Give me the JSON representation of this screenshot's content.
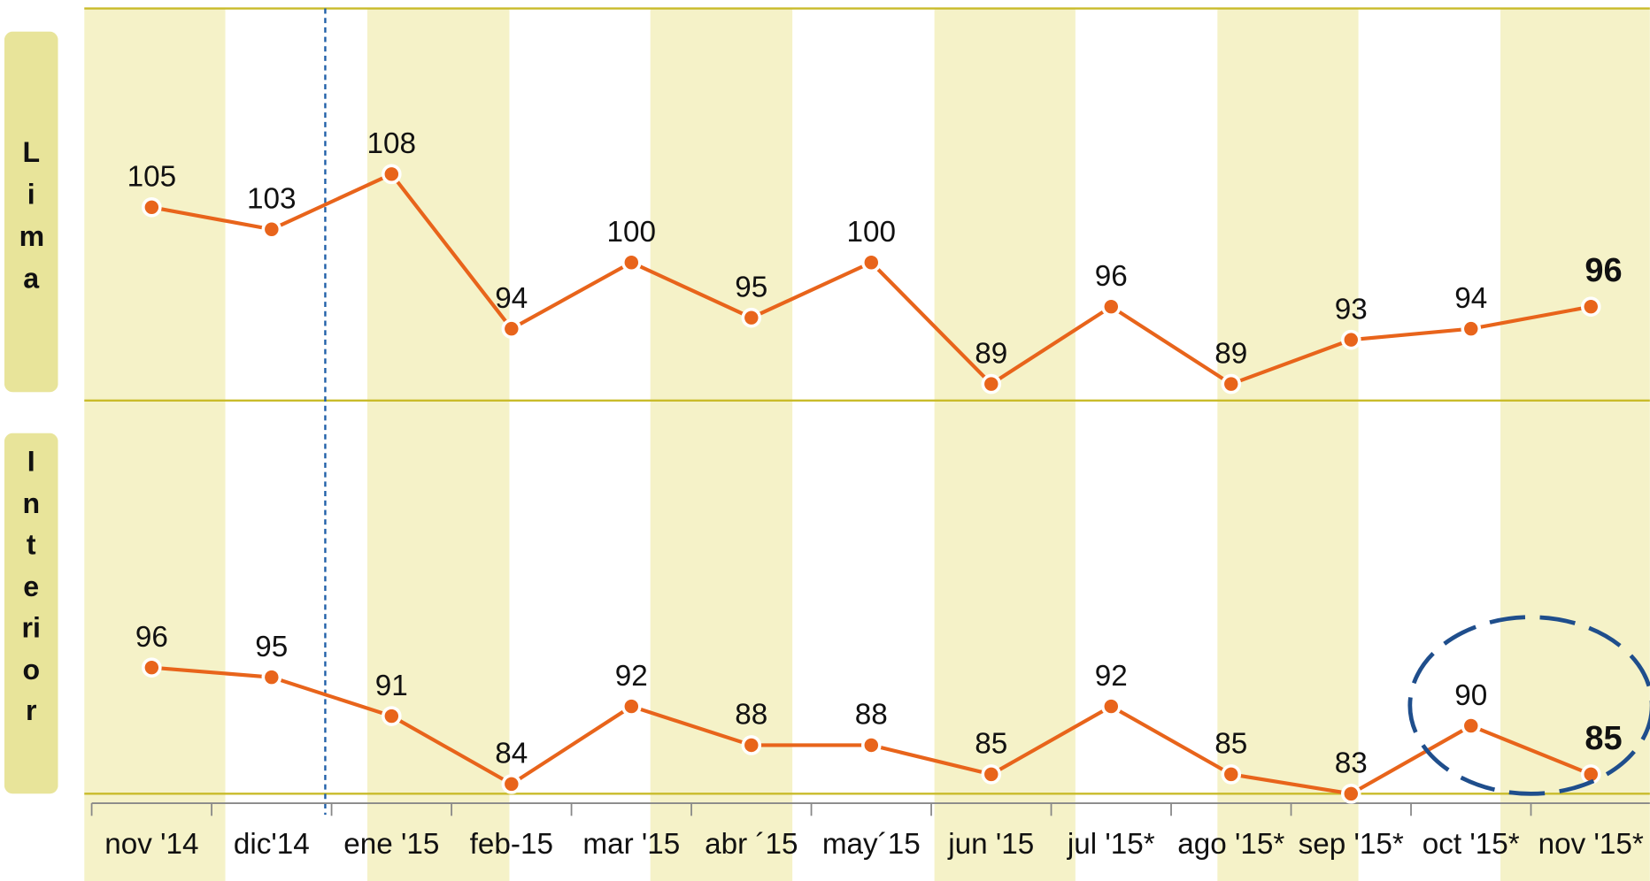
{
  "chart_data": {
    "type": "line",
    "categories": [
      "nov '14",
      "dic'14",
      "ene '15",
      "feb-15",
      "mar '15",
      "abr ´15",
      "may´15",
      "jun '15",
      "jul '15*",
      "ago '15*",
      "sep '15*",
      "oct '15*",
      "nov '15*"
    ],
    "series": [
      {
        "name": "Lima",
        "color": "#e8641b",
        "values": [
          105,
          103,
          108,
          94,
          100,
          95,
          100,
          89,
          96,
          89,
          93,
          94,
          96
        ],
        "ylim": [
          87.5,
          123
        ]
      },
      {
        "name": "Interior",
        "color": "#e8641b",
        "values": [
          96,
          95,
          91,
          84,
          92,
          88,
          88,
          85,
          92,
          85,
          83,
          90,
          85
        ],
        "ylim": [
          83,
          123.5
        ]
      }
    ]
  }
}
